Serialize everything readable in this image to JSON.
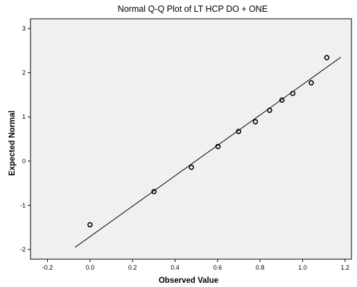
{
  "chart_data": {
    "type": "scatter",
    "title": "Normal Q-Q Plot of LT HCP DO + ONE",
    "xlabel": "Observed Value",
    "ylabel": "Expected Normal",
    "xlim": [
      -0.28,
      1.23
    ],
    "ylim": [
      -2.22,
      3.22
    ],
    "x_ticks": [
      -0.2,
      0.0,
      0.2,
      0.4,
      0.6,
      0.8,
      1.0,
      1.2
    ],
    "x_tick_labels": [
      "-0.2",
      "0.0",
      "0.2",
      "0.4",
      "0.6",
      "0.8",
      "1.0",
      "1.2"
    ],
    "y_ticks": [
      -2,
      -1,
      0,
      1,
      2,
      3
    ],
    "y_tick_labels": [
      "-2",
      "-1",
      "0",
      "1",
      "2",
      "3"
    ],
    "grid": false,
    "plot_background": "#f0f0f0",
    "points": [
      {
        "x": 0.0,
        "y": -1.44
      },
      {
        "x": 0.301,
        "y": -0.69
      },
      {
        "x": 0.477,
        "y": -0.14
      },
      {
        "x": 0.602,
        "y": 0.33
      },
      {
        "x": 0.699,
        "y": 0.67
      },
      {
        "x": 0.778,
        "y": 0.89
      },
      {
        "x": 0.845,
        "y": 1.15
      },
      {
        "x": 0.903,
        "y": 1.38
      },
      {
        "x": 0.954,
        "y": 1.53
      },
      {
        "x": 1.041,
        "y": 1.77
      },
      {
        "x": 1.114,
        "y": 2.34
      }
    ],
    "reference_line": {
      "x": [
        -0.07,
        1.18
      ],
      "y": [
        -1.95,
        2.35
      ]
    },
    "colors": {
      "marker": "#000000",
      "line": "#000000",
      "plot_bg": "#f0f0f0"
    }
  }
}
